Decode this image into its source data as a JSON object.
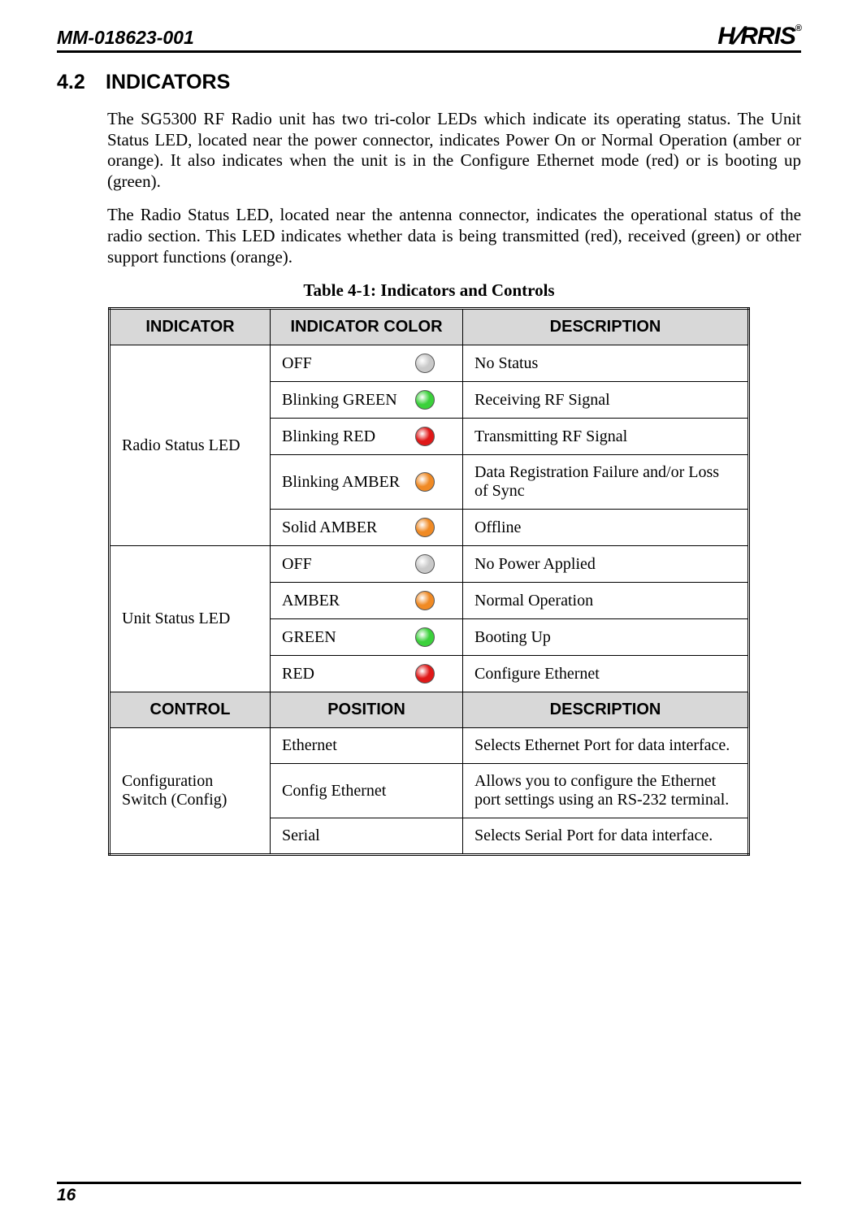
{
  "header": {
    "doc_id": "MM-018623-001",
    "logo_text": "HARRIS",
    "logo_reg": "®"
  },
  "section": {
    "number": "4.2",
    "title": "INDICATORS"
  },
  "paragraphs": {
    "p1": "The SG5300 RF Radio unit has two tri-color LEDs which indicate its operating status. The Unit Status LED, located near the power connector, indicates Power On or Normal Operation (amber or orange).  It also indicates when the unit is in the Configure Ethernet mode (red) or is booting up (green).",
    "p2": "The Radio Status LED, located near the antenna connector, indicates the operational status of the radio section.  This LED indicates whether data is being transmitted (red), received (green) or other support functions (orange)."
  },
  "table": {
    "caption": "Table 4-1:  Indicators and Controls",
    "headers1": {
      "c1": "INDICATOR",
      "c2": "INDICATOR COLOR",
      "c3": "DESCRIPTION"
    },
    "headers2": {
      "c1": "CONTROL",
      "c2": "POSITION",
      "c3": "DESCRIPTION"
    },
    "groups": [
      {
        "name": "Radio Status LED",
        "rows": [
          {
            "label": "OFF",
            "color": "#c9c9c9",
            "desc": "No Status"
          },
          {
            "label": "Blinking GREEN",
            "color": "#3bd13b",
            "desc": "Receiving RF Signal"
          },
          {
            "label": "Blinking RED",
            "color": "#e01818",
            "desc": "Transmitting RF Signal"
          },
          {
            "label": "Blinking AMBER",
            "color": "#f08a24",
            "desc": "Data Registration Failure and/or Loss of Sync"
          },
          {
            "label": "Solid AMBER",
            "color": "#f08a24",
            "desc": "Offline"
          }
        ]
      },
      {
        "name": "Unit Status LED",
        "rows": [
          {
            "label": "OFF",
            "color": "#c9c9c9",
            "desc": "No Power Applied"
          },
          {
            "label": "AMBER",
            "color": "#f08a24",
            "desc": "Normal Operation"
          },
          {
            "label": "GREEN",
            "color": "#3bd13b",
            "desc": "Booting Up"
          },
          {
            "label": "RED",
            "color": "#e01818",
            "desc": "Configure Ethernet"
          }
        ]
      }
    ],
    "controls": {
      "name": "Configuration Switch (Config)",
      "rows": [
        {
          "pos": "Ethernet",
          "desc": "Selects Ethernet Port for data interface."
        },
        {
          "pos": "Config Ethernet",
          "desc": "Allows you to configure the Ethernet port settings using an RS-232 terminal."
        },
        {
          "pos": "Serial",
          "desc": "Selects Serial Port for data interface."
        }
      ]
    }
  },
  "page_number": "16"
}
